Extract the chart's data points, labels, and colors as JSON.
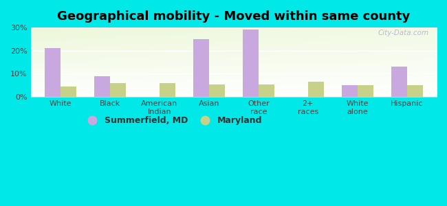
{
  "title": "Geographical mobility - Moved within same county",
  "categories": [
    "White",
    "Black",
    "American\nIndian",
    "Asian",
    "Other\nrace",
    "2+\nraces",
    "White\nalone",
    "Hispanic"
  ],
  "summerfield_values": [
    21,
    9,
    0,
    25,
    29,
    0,
    5,
    13
  ],
  "maryland_values": [
    4.5,
    6,
    6,
    5.5,
    5.5,
    6.5,
    5,
    5
  ],
  "summerfield_color": "#c9a8e0",
  "maryland_color": "#c8d18a",
  "background_color": "#00e8e8",
  "ylim": [
    0,
    30
  ],
  "yticks": [
    0,
    10,
    20,
    30
  ],
  "ytick_labels": [
    "0%",
    "10%",
    "20%",
    "30%"
  ],
  "bar_width": 0.32,
  "legend_label1": "Summerfield, MD",
  "legend_label2": "Maryland",
  "watermark": "City-Data.com",
  "title_fontsize": 13,
  "tick_fontsize": 8
}
